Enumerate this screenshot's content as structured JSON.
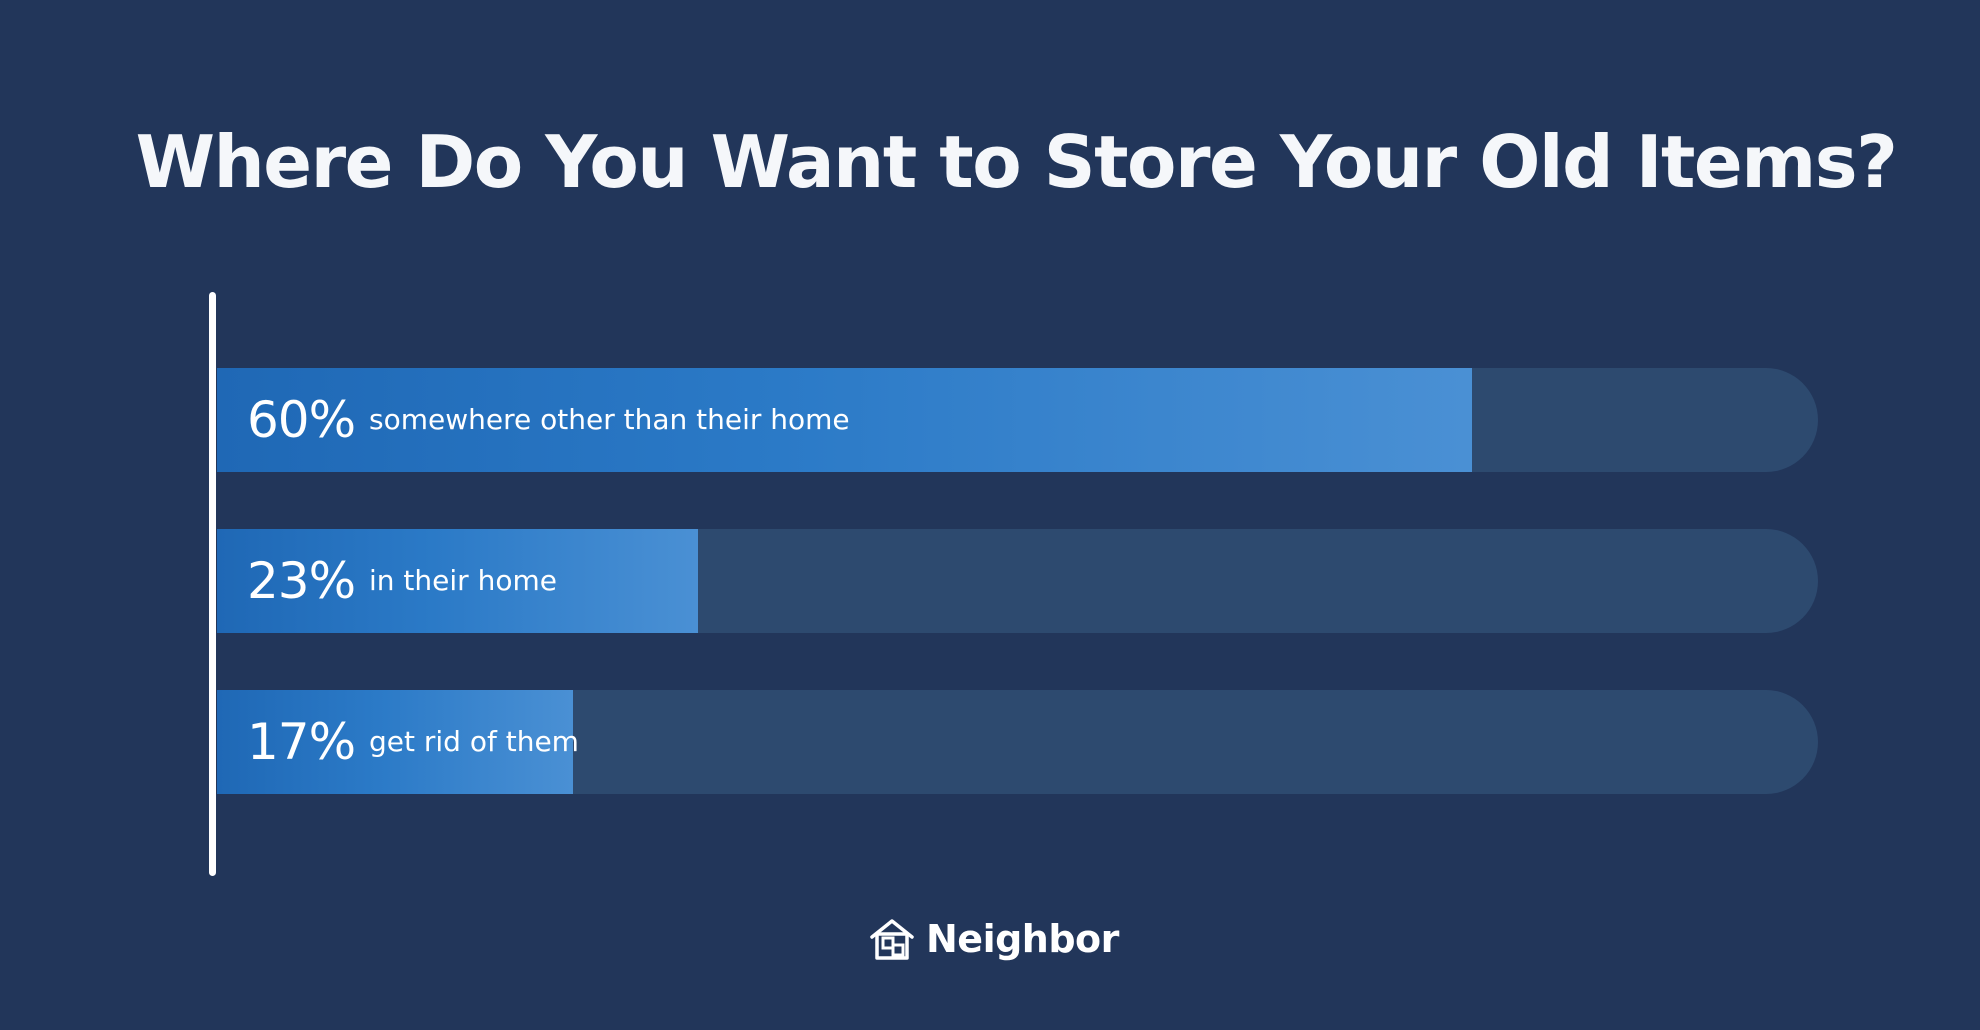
{
  "chart_data": {
    "type": "bar",
    "orientation": "horizontal",
    "title": "Where Do You Want to Store Your Old Items?",
    "xlabel": "",
    "ylabel": "",
    "xlim": [
      0,
      100
    ],
    "grid": false,
    "categories": [
      "somewhere other than their home",
      "in their home",
      "get rid of them"
    ],
    "value_labels": [
      "60%",
      "23%",
      "17%"
    ],
    "values": [
      60,
      23,
      17
    ]
  },
  "brand": {
    "name": "Neighbor",
    "logo_icon": "house-icon"
  },
  "colors": {
    "background": "#22365a",
    "track": "#2d4a6f",
    "bar_start": "#1f68b5",
    "bar_end": "#4a90d4",
    "text": "#ffffff"
  }
}
